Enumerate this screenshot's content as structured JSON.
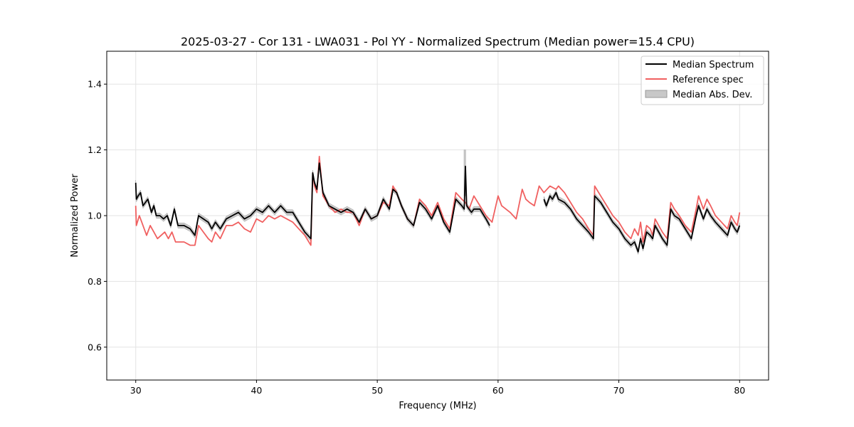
{
  "chart_data": {
    "type": "line",
    "title": "2025-03-27 - Cor 131 - LWA031 - Pol YY - Normalized Spectrum (Median power=15.4 CPU)",
    "xlabel": "Frequency (MHz)",
    "ylabel": "Normalized Power",
    "xlim": [
      27.6,
      82.4
    ],
    "ylim": [
      0.5,
      1.5
    ],
    "xticks": [
      30,
      40,
      50,
      60,
      70,
      80
    ],
    "xtick_labels": [
      "30",
      "40",
      "50",
      "60",
      "70",
      "80"
    ],
    "yticks": [
      0.6,
      0.8,
      1.0,
      1.2,
      1.4
    ],
    "ytick_labels": [
      "0.6",
      "0.8",
      "1.0",
      "1.2",
      "1.4"
    ],
    "grid": true,
    "legend_position": "top-right",
    "legend": [
      "Median Spectrum",
      "Reference spec",
      "Median Abs. Dev."
    ],
    "colors": {
      "median": "#000000",
      "reference": "#f06060",
      "mad": "#c8c8c8",
      "mad_edge": "#9a9a9a"
    },
    "series": [
      {
        "name": "Median Spectrum",
        "segments": [
          {
            "x": [
              30.0,
              30.05,
              30.2,
              30.4,
              30.6,
              30.8,
              31.0,
              31.3,
              31.5,
              31.7,
              32.0,
              32.3,
              32.6,
              32.9,
              33.2,
              33.5,
              34.0,
              34.5,
              34.9,
              35.2,
              35.6,
              36.0,
              36.3,
              36.6,
              37.0,
              37.5,
              38.0,
              38.5,
              39.0,
              39.5,
              40.0,
              40.5,
              41.0,
              41.5,
              42.0,
              42.5,
              43.0,
              43.5,
              44.0,
              44.5,
              44.65,
              44.8,
              45.0,
              45.2,
              45.5,
              46.0,
              46.5,
              47.0,
              47.5,
              48.0,
              48.5,
              49.0,
              49.5,
              50.0,
              50.5,
              51.0,
              51.3,
              51.6,
              52.0,
              52.5,
              53.0,
              53.5,
              54.0,
              54.5,
              55.0,
              55.5,
              56.0,
              56.5,
              57.0,
              57.2,
              57.3,
              57.4,
              57.6,
              57.8,
              58.0,
              58.5,
              59.0,
              59.3
            ],
            "y": [
              1.1,
              1.05,
              1.06,
              1.07,
              1.03,
              1.04,
              1.05,
              1.01,
              1.03,
              1.0,
              1.0,
              0.99,
              1.0,
              0.97,
              1.02,
              0.97,
              0.97,
              0.96,
              0.94,
              1.0,
              0.99,
              0.98,
              0.96,
              0.98,
              0.96,
              0.99,
              1.0,
              1.01,
              0.99,
              1.0,
              1.02,
              1.01,
              1.03,
              1.01,
              1.03,
              1.01,
              1.01,
              0.98,
              0.95,
              0.93,
              1.13,
              1.1,
              1.08,
              1.16,
              1.07,
              1.03,
              1.02,
              1.01,
              1.02,
              1.01,
              0.98,
              1.02,
              0.99,
              1.0,
              1.05,
              1.02,
              1.08,
              1.07,
              1.03,
              0.99,
              0.97,
              1.04,
              1.02,
              0.99,
              1.03,
              0.98,
              0.95,
              1.05,
              1.03,
              1.02,
              1.15,
              1.03,
              1.02,
              1.01,
              1.02,
              1.02,
              0.99,
              0.97
            ]
          },
          {
            "x": [
              63.8,
              64.0,
              64.3,
              64.5,
              64.8,
              65.0,
              65.5,
              66.0,
              66.5,
              67.0,
              67.5,
              67.9,
              68.0,
              68.5,
              69.0,
              69.5,
              70.0,
              70.5,
              71.0,
              71.3,
              71.6,
              71.8,
              72.0,
              72.3,
              72.6,
              72.8,
              73.0,
              73.3,
              73.6,
              74.0,
              74.3,
              74.6,
              75.0,
              75.5,
              76.0,
              76.4,
              76.6,
              77.0,
              77.3,
              77.6,
              78.0,
              78.5,
              79.0,
              79.3,
              79.6,
              79.8,
              80.0
            ],
            "y": [
              1.05,
              1.03,
              1.06,
              1.05,
              1.07,
              1.05,
              1.04,
              1.02,
              0.99,
              0.97,
              0.95,
              0.93,
              1.06,
              1.04,
              1.01,
              0.98,
              0.96,
              0.93,
              0.91,
              0.92,
              0.89,
              0.93,
              0.9,
              0.95,
              0.94,
              0.93,
              0.97,
              0.95,
              0.93,
              0.91,
              1.02,
              1.0,
              0.99,
              0.96,
              0.93,
              1.0,
              1.03,
              0.99,
              1.02,
              1.0,
              0.98,
              0.96,
              0.94,
              0.98,
              0.96,
              0.95,
              0.97
            ]
          }
        ]
      },
      {
        "name": "Reference spec",
        "segments": [
          {
            "x": [
              30.0,
              30.05,
              30.3,
              30.5,
              30.7,
              30.9,
              31.2,
              31.5,
              31.8,
              32.1,
              32.4,
              32.7,
              33.0,
              33.3,
              34.0,
              34.5,
              34.9,
              35.2,
              35.6,
              36.0,
              36.3,
              36.6,
              37.0,
              37.5,
              38.0,
              38.5,
              39.0,
              39.5,
              40.0,
              40.5,
              41.0,
              41.5,
              42.0,
              42.5,
              43.0,
              43.5,
              44.0,
              44.5,
              44.65,
              44.8,
              45.0,
              45.2,
              45.5,
              46.0,
              46.5,
              47.0,
              47.5,
              48.0,
              48.5,
              49.0,
              49.5,
              50.0,
              50.5,
              51.0,
              51.3,
              51.6,
              52.0,
              52.5,
              53.0,
              53.5,
              54.0,
              54.5,
              55.0,
              55.5,
              56.0,
              56.5,
              57.0,
              57.3,
              57.6,
              58.0,
              58.5,
              59.0,
              59.5,
              60.0,
              60.3,
              61.0,
              61.5,
              62.0,
              62.3,
              62.6,
              63.0,
              63.4,
              63.8,
              64.3,
              64.8,
              65.0,
              65.5,
              66.0,
              66.5,
              67.0,
              67.5,
              67.9,
              68.0,
              68.5,
              69.0,
              69.5,
              70.0,
              70.5,
              71.0,
              71.3,
              71.6,
              71.8,
              72.0,
              72.3,
              72.6,
              72.8,
              73.0,
              73.3,
              73.6,
              74.0,
              74.3,
              74.6,
              75.0,
              75.5,
              76.0,
              76.4,
              76.6,
              77.0,
              77.3,
              77.6,
              78.0,
              78.5,
              79.0,
              79.3,
              79.6,
              79.8,
              80.0
            ],
            "y": [
              1.03,
              0.97,
              1.0,
              0.98,
              0.96,
              0.94,
              0.97,
              0.95,
              0.93,
              0.94,
              0.95,
              0.93,
              0.95,
              0.92,
              0.92,
              0.91,
              0.91,
              0.97,
              0.95,
              0.93,
              0.92,
              0.95,
              0.93,
              0.97,
              0.97,
              0.98,
              0.96,
              0.95,
              0.99,
              0.98,
              1.0,
              0.99,
              1.0,
              0.99,
              0.98,
              0.96,
              0.94,
              0.91,
              1.13,
              1.09,
              1.07,
              1.18,
              1.06,
              1.03,
              1.01,
              1.02,
              1.01,
              1.01,
              0.97,
              1.02,
              0.99,
              1.0,
              1.04,
              1.03,
              1.09,
              1.07,
              1.03,
              0.99,
              0.97,
              1.05,
              1.03,
              1.0,
              1.04,
              0.99,
              0.96,
              1.07,
              1.05,
              1.04,
              1.02,
              1.06,
              1.03,
              1.0,
              0.98,
              1.06,
              1.03,
              1.01,
              0.99,
              1.08,
              1.05,
              1.04,
              1.03,
              1.09,
              1.07,
              1.09,
              1.08,
              1.09,
              1.07,
              1.04,
              1.01,
              0.99,
              0.96,
              0.94,
              1.09,
              1.06,
              1.03,
              1.0,
              0.98,
              0.95,
              0.93,
              0.96,
              0.94,
              0.98,
              0.92,
              0.97,
              0.96,
              0.94,
              0.99,
              0.97,
              0.95,
              0.93,
              1.04,
              1.02,
              1.0,
              0.97,
              0.95,
              1.02,
              1.06,
              1.02,
              1.05,
              1.03,
              1.0,
              0.98,
              0.96,
              1.0,
              0.98,
              0.97,
              1.01
            ]
          }
        ]
      },
      {
        "name": "Median Abs. Dev.",
        "mad": 0.008,
        "spike": {
          "x": 57.25,
          "y_low": 1.06,
          "y_high": 1.2
        }
      }
    ]
  }
}
